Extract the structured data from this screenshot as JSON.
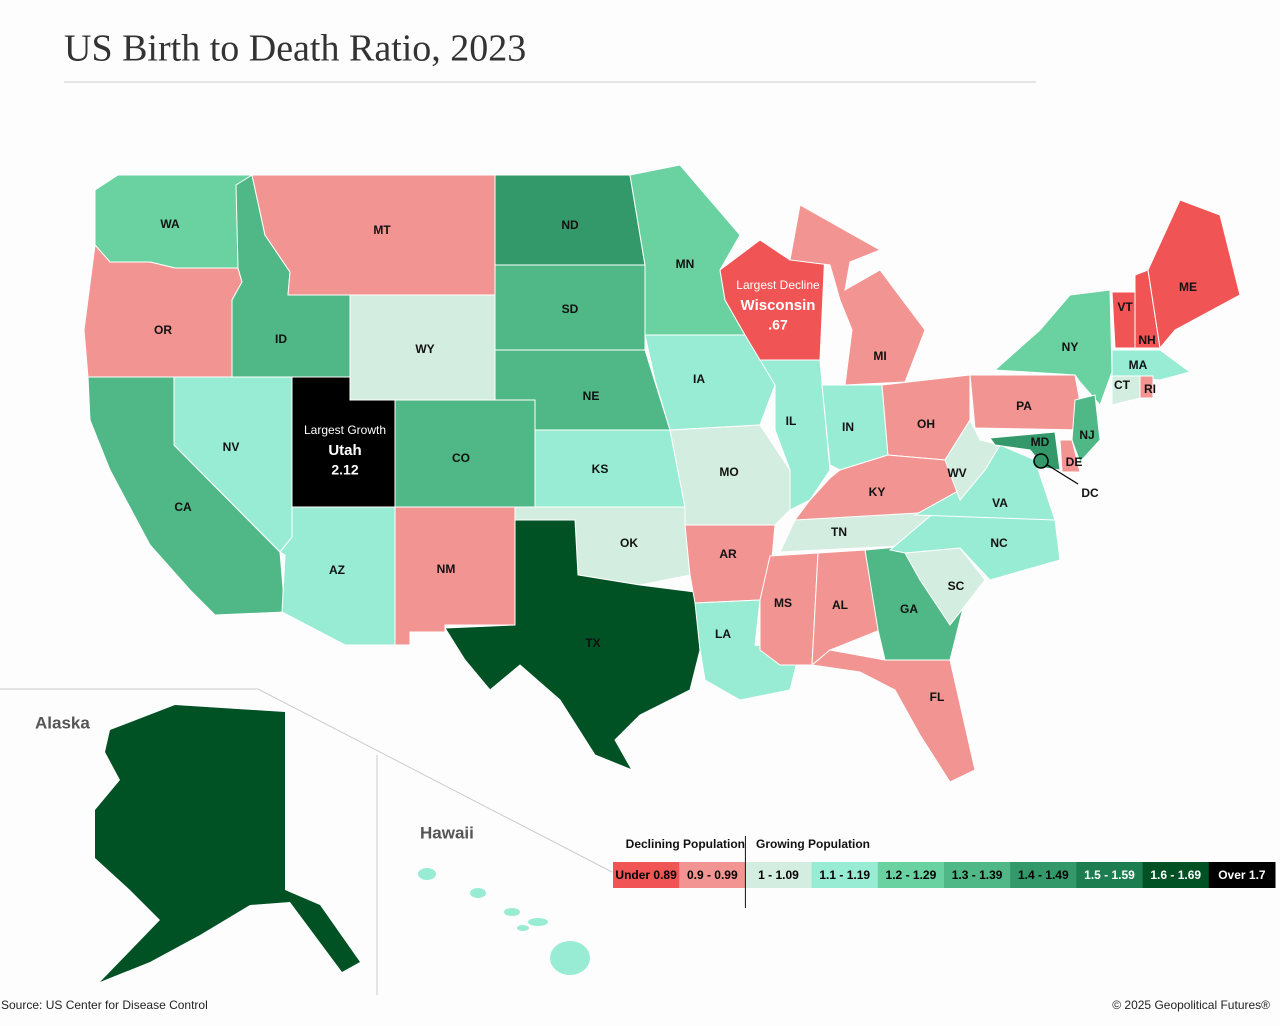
{
  "title": "US Birth to Death Ratio, 2023",
  "legend": {
    "declining_label": "Declining Population",
    "growing_label": "Growing Population",
    "bins": [
      {
        "label": "Under 0.89",
        "color": "#f05454",
        "text_color": "#000000"
      },
      {
        "label": "0.9 - 0.99",
        "color": "#f29491",
        "text_color": "#000000"
      },
      {
        "label": "1 - 1.09",
        "color": "#d3eee0",
        "text_color": "#000000"
      },
      {
        "label": "1.1 - 1.19",
        "color": "#99ecd4",
        "text_color": "#000000"
      },
      {
        "label": "1.2 - 1.29",
        "color": "#6ad1a0",
        "text_color": "#000000"
      },
      {
        "label": "1.3 - 1.39",
        "color": "#50b886",
        "text_color": "#000000"
      },
      {
        "label": "1.4 - 1.49",
        "color": "#34996a",
        "text_color": "#000000"
      },
      {
        "label": "1.5 - 1.59",
        "color": "#1c7e50",
        "text_color": "#ffffff"
      },
      {
        "label": "1.6 - 1.69",
        "color": "#005124",
        "text_color": "#ffffff"
      },
      {
        "label": "Over 1.7",
        "color": "#000000",
        "text_color": "#ffffff"
      }
    ]
  },
  "states": [
    {
      "abbr": "WA",
      "bin": 4
    },
    {
      "abbr": "OR",
      "bin": 1
    },
    {
      "abbr": "CA",
      "bin": 5
    },
    {
      "abbr": "NV",
      "bin": 3
    },
    {
      "abbr": "ID",
      "bin": 5
    },
    {
      "abbr": "MT",
      "bin": 1
    },
    {
      "abbr": "WY",
      "bin": 2
    },
    {
      "abbr": "UT",
      "bin": 9
    },
    {
      "abbr": "CO",
      "bin": 5
    },
    {
      "abbr": "AZ",
      "bin": 3
    },
    {
      "abbr": "NM",
      "bin": 1
    },
    {
      "abbr": "ND",
      "bin": 6
    },
    {
      "abbr": "SD",
      "bin": 5
    },
    {
      "abbr": "NE",
      "bin": 5
    },
    {
      "abbr": "KS",
      "bin": 3
    },
    {
      "abbr": "OK",
      "bin": 2
    },
    {
      "abbr": "TX",
      "bin": 8
    },
    {
      "abbr": "MN",
      "bin": 4
    },
    {
      "abbr": "IA",
      "bin": 3
    },
    {
      "abbr": "MO",
      "bin": 2
    },
    {
      "abbr": "AR",
      "bin": 1
    },
    {
      "abbr": "LA",
      "bin": 3
    },
    {
      "abbr": "WI",
      "bin": 0
    },
    {
      "abbr": "IL",
      "bin": 3
    },
    {
      "abbr": "MI",
      "bin": 1
    },
    {
      "abbr": "IN",
      "bin": 3
    },
    {
      "abbr": "OH",
      "bin": 1
    },
    {
      "abbr": "KY",
      "bin": 1
    },
    {
      "abbr": "TN",
      "bin": 2
    },
    {
      "abbr": "MS",
      "bin": 1
    },
    {
      "abbr": "AL",
      "bin": 1
    },
    {
      "abbr": "GA",
      "bin": 5
    },
    {
      "abbr": "FL",
      "bin": 1
    },
    {
      "abbr": "SC",
      "bin": 2
    },
    {
      "abbr": "NC",
      "bin": 3
    },
    {
      "abbr": "VA",
      "bin": 3
    },
    {
      "abbr": "WV",
      "bin": 2
    },
    {
      "abbr": "PA",
      "bin": 1
    },
    {
      "abbr": "NY",
      "bin": 4
    },
    {
      "abbr": "VT",
      "bin": 0
    },
    {
      "abbr": "NH",
      "bin": 0
    },
    {
      "abbr": "ME",
      "bin": 0
    },
    {
      "abbr": "MA",
      "bin": 3
    },
    {
      "abbr": "CT",
      "bin": 2
    },
    {
      "abbr": "RI",
      "bin": 1
    },
    {
      "abbr": "NJ",
      "bin": 5
    },
    {
      "abbr": "DE",
      "bin": 1
    },
    {
      "abbr": "MD",
      "bin": 6
    },
    {
      "abbr": "DC",
      "bin": 6
    }
  ],
  "insets": {
    "alaska": {
      "name": "Alaska",
      "bin": 8
    },
    "hawaii": {
      "name": "Hawaii",
      "bin": 3
    }
  },
  "annotations": {
    "growth": {
      "caption": "Largest Growth",
      "name": "Utah",
      "value": "2.12"
    },
    "decline": {
      "caption": "Largest Decline",
      "name": "Wisconsin",
      "value": ".67"
    }
  },
  "source": "Source: US Center for Disease Control",
  "copyright": "© 2025 Geopolitical Futures®"
}
